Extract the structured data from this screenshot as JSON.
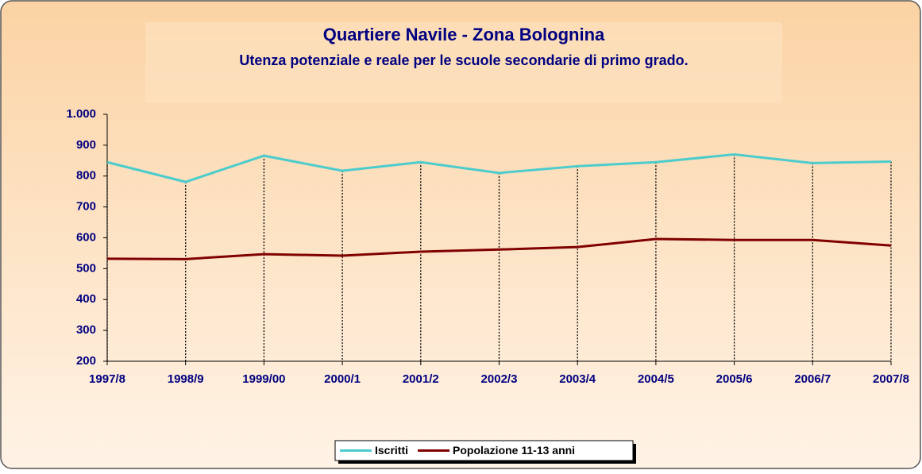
{
  "chart_data": {
    "type": "line",
    "title": "Quartiere Navile - Zona Bolognina",
    "subtitle": "Utenza potenziale e reale per le scuole secondarie di primo grado.",
    "categories": [
      "1997/8",
      "1998/9",
      "1999/00",
      "2000/1",
      "2001/2",
      "2002/3",
      "2003/4",
      "2004/5",
      "2005/6",
      "2006/7",
      "2007/8"
    ],
    "series": [
      {
        "name": "Iscritti",
        "color": "#4ccccc",
        "values": [
          845,
          781,
          866,
          817,
          845,
          810,
          832,
          845,
          870,
          842,
          847
        ]
      },
      {
        "name": "Popolazione 11-13 anni",
        "color": "#800000",
        "values": [
          532,
          531,
          547,
          542,
          555,
          562,
          570,
          596,
          593,
          593,
          575
        ]
      }
    ],
    "ylim": [
      200,
      1000
    ],
    "yticks": [
      200,
      300,
      400,
      500,
      600,
      700,
      800,
      900,
      {
        "value": 1000,
        "label": "1.000"
      }
    ],
    "drop_lines": true,
    "legend": "bottom"
  }
}
